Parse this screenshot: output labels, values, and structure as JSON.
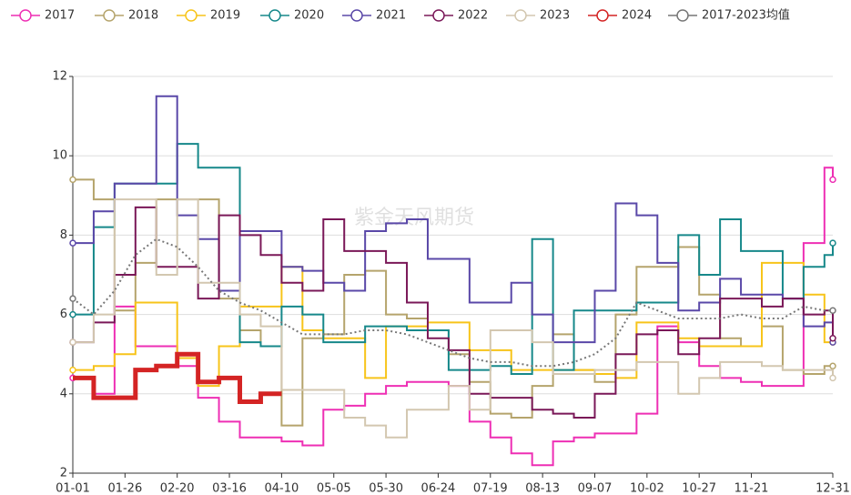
{
  "chart_data": {
    "type": "line",
    "step": true,
    "watermark": "紫金天风期货",
    "x": [
      0,
      10,
      20,
      30,
      40,
      50,
      60,
      70,
      80,
      90,
      100,
      110,
      120,
      130,
      140,
      150,
      160,
      170,
      180,
      190,
      200,
      210,
      220,
      230,
      240,
      250,
      260,
      270,
      280,
      290,
      300,
      310,
      320,
      330,
      340,
      350,
      360,
      364
    ],
    "xlim": [
      0,
      364
    ],
    "xticks": [
      {
        "value": 0,
        "label": "01-01"
      },
      {
        "value": 25,
        "label": "01-26"
      },
      {
        "value": 50,
        "label": "02-20"
      },
      {
        "value": 75,
        "label": "03-16"
      },
      {
        "value": 100,
        "label": "04-10"
      },
      {
        "value": 125,
        "label": "05-05"
      },
      {
        "value": 150,
        "label": "05-30"
      },
      {
        "value": 175,
        "label": "06-24"
      },
      {
        "value": 200,
        "label": "07-19"
      },
      {
        "value": 225,
        "label": "08-13"
      },
      {
        "value": 250,
        "label": "09-07"
      },
      {
        "value": 275,
        "label": "10-02"
      },
      {
        "value": 300,
        "label": "10-27"
      },
      {
        "value": 325,
        "label": "11-21"
      },
      {
        "value": 364,
        "label": "12-31"
      }
    ],
    "ylim": [
      2,
      12
    ],
    "yticks": [
      2,
      4,
      6,
      8,
      10,
      12
    ],
    "grid": true,
    "series": [
      {
        "name": "2017",
        "color": "#ee2fb4",
        "values": [
          4.4,
          4.0,
          6.2,
          5.2,
          5.2,
          4.7,
          3.9,
          3.3,
          2.9,
          2.9,
          2.8,
          2.7,
          3.6,
          3.7,
          4.0,
          4.2,
          4.3,
          4.3,
          4.2,
          3.3,
          2.9,
          2.5,
          2.2,
          2.8,
          2.9,
          3.0,
          3.0,
          3.5,
          5.7,
          5.3,
          4.7,
          4.4,
          4.3,
          4.2,
          4.2,
          7.8,
          9.7,
          9.4
        ]
      },
      {
        "name": "2018",
        "color": "#b5a46c",
        "values": [
          9.4,
          8.9,
          6.1,
          7.3,
          8.9,
          8.9,
          8.9,
          6.4,
          5.6,
          5.2,
          3.2,
          5.4,
          5.5,
          7.0,
          7.1,
          6.0,
          5.9,
          5.6,
          5.0,
          4.3,
          3.5,
          3.4,
          4.2,
          5.5,
          4.6,
          4.3,
          6.0,
          7.2,
          7.2,
          7.7,
          6.5,
          5.4,
          5.2,
          5.7,
          4.6,
          4.5,
          4.7,
          4.7
        ]
      },
      {
        "name": "2019",
        "color": "#f7c41a",
        "values": [
          4.6,
          4.7,
          5.0,
          6.3,
          6.3,
          4.9,
          4.2,
          5.2,
          6.2,
          6.2,
          7.2,
          5.6,
          5.4,
          5.4,
          4.4,
          5.7,
          5.7,
          5.8,
          5.8,
          5.1,
          5.1,
          4.6,
          4.6,
          4.6,
          4.6,
          4.5,
          4.4,
          5.8,
          5.8,
          5.4,
          5.2,
          5.2,
          5.2,
          7.3,
          7.3,
          6.5,
          5.3,
          5.3
        ]
      },
      {
        "name": "2020",
        "color": "#16888a",
        "values": [
          6.0,
          8.2,
          9.3,
          9.3,
          9.3,
          10.3,
          9.7,
          9.7,
          5.3,
          5.2,
          6.2,
          6.0,
          5.3,
          5.3,
          5.7,
          5.7,
          5.6,
          5.6,
          4.6,
          4.6,
          4.7,
          4.5,
          7.9,
          4.6,
          6.1,
          6.1,
          6.1,
          6.3,
          6.3,
          8.0,
          7.0,
          8.4,
          7.6,
          7.6,
          6.4,
          7.2,
          7.5,
          7.8
        ]
      },
      {
        "name": "2021",
        "color": "#5a48a8",
        "values": [
          7.8,
          8.6,
          9.3,
          9.3,
          11.5,
          8.5,
          7.9,
          6.6,
          8.1,
          8.1,
          7.2,
          7.1,
          6.8,
          6.6,
          8.1,
          8.3,
          8.4,
          7.4,
          7.4,
          6.3,
          6.3,
          6.8,
          6.0,
          5.3,
          5.3,
          6.6,
          8.8,
          8.5,
          7.3,
          6.1,
          6.3,
          6.9,
          6.5,
          6.5,
          6.4,
          5.7,
          5.8,
          5.3
        ]
      },
      {
        "name": "2022",
        "color": "#7a1858",
        "values": [
          5.3,
          5.8,
          7.0,
          8.7,
          7.2,
          7.2,
          6.4,
          8.5,
          8.0,
          7.5,
          6.8,
          6.6,
          8.4,
          7.6,
          7.6,
          7.3,
          6.3,
          5.4,
          5.1,
          4.0,
          3.9,
          3.9,
          3.6,
          3.5,
          3.4,
          4.0,
          5.0,
          5.5,
          5.6,
          5.0,
          5.4,
          6.4,
          6.4,
          6.2,
          6.4,
          6.0,
          6.1,
          5.4
        ]
      },
      {
        "name": "2023",
        "color": "#d3c7b0",
        "values": [
          5.3,
          6.0,
          8.9,
          8.9,
          7.0,
          8.9,
          6.8,
          6.8,
          6.0,
          5.7,
          4.1,
          4.1,
          4.1,
          3.4,
          3.2,
          2.9,
          3.6,
          3.6,
          4.2,
          3.6,
          5.6,
          5.6,
          5.3,
          4.5,
          4.5,
          4.6,
          4.6,
          4.8,
          4.8,
          4.0,
          4.4,
          4.8,
          4.8,
          4.7,
          4.6,
          4.6,
          4.6,
          4.4
        ]
      },
      {
        "name": "2024",
        "color": "#d42424",
        "values": [
          4.4,
          3.9,
          3.9,
          4.6,
          4.7,
          5.0,
          4.3,
          4.4,
          3.8,
          4.0,
          4.0,
          null,
          null,
          null,
          null,
          null,
          null,
          null,
          null,
          null,
          null,
          null,
          null,
          null,
          null,
          null,
          null,
          null,
          null,
          null,
          null,
          null,
          null,
          null,
          null,
          null,
          null,
          null
        ]
      },
      {
        "name": "2017-2023均值",
        "color": "#777777",
        "dash": true,
        "values": [
          6.4,
          6.0,
          6.6,
          7.5,
          7.9,
          7.7,
          7.2,
          6.6,
          6.3,
          6.1,
          5.8,
          5.5,
          5.5,
          5.5,
          5.6,
          5.6,
          5.5,
          5.3,
          5.1,
          4.9,
          4.8,
          4.8,
          4.7,
          4.7,
          4.8,
          5.0,
          5.4,
          6.3,
          6.1,
          5.9,
          5.9,
          5.9,
          6.0,
          5.9,
          5.9,
          6.2,
          6.1,
          6.1
        ]
      }
    ]
  }
}
